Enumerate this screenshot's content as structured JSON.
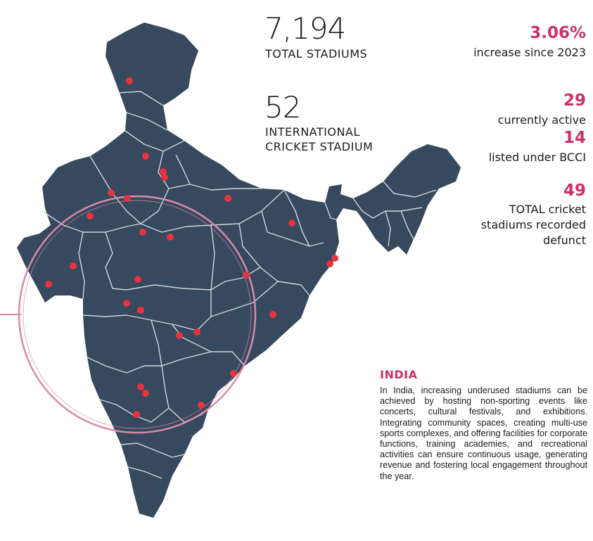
{
  "stats": {
    "total_stadiums": {
      "value": "7,194",
      "label": "TOTAL STADIUMS"
    },
    "international": {
      "value": "52",
      "label_line1": "INTERNATIONAL",
      "label_line2": "CRICKET STADIUM"
    },
    "increase": {
      "value": "3.06%",
      "label": "increase since 2023"
    },
    "active": {
      "value": "29",
      "label": "currently active"
    },
    "bcci": {
      "value": "14",
      "label": "listed under BCCI"
    },
    "defunct": {
      "value": "49",
      "label_line1": "TOTAL cricket",
      "label_line2": "stadiums recorded",
      "label_line3": "defunct"
    }
  },
  "info": {
    "title": "INDIA",
    "body": "In India, increasing underused stadiums can be achieved by hosting non-sporting events like concerts, cultural festivals, and exhibitions. Integrating community spaces, creating multi-use sports complexes, and offering facilities for corporate functions, training academies, and recreational activities can ensure continuous usage, generating revenue and fostering local engagement throughout the year."
  },
  "map": {
    "country": "India",
    "marker_count": 27,
    "highlight": "pink circle around central and western India"
  },
  "colors": {
    "map_fill": "#36495e",
    "state_border": "#cfd6de",
    "marker": "#e8333f",
    "circle": "#d98aa8",
    "accent": "#cc2f6a",
    "text": "#1b1b1b"
  }
}
